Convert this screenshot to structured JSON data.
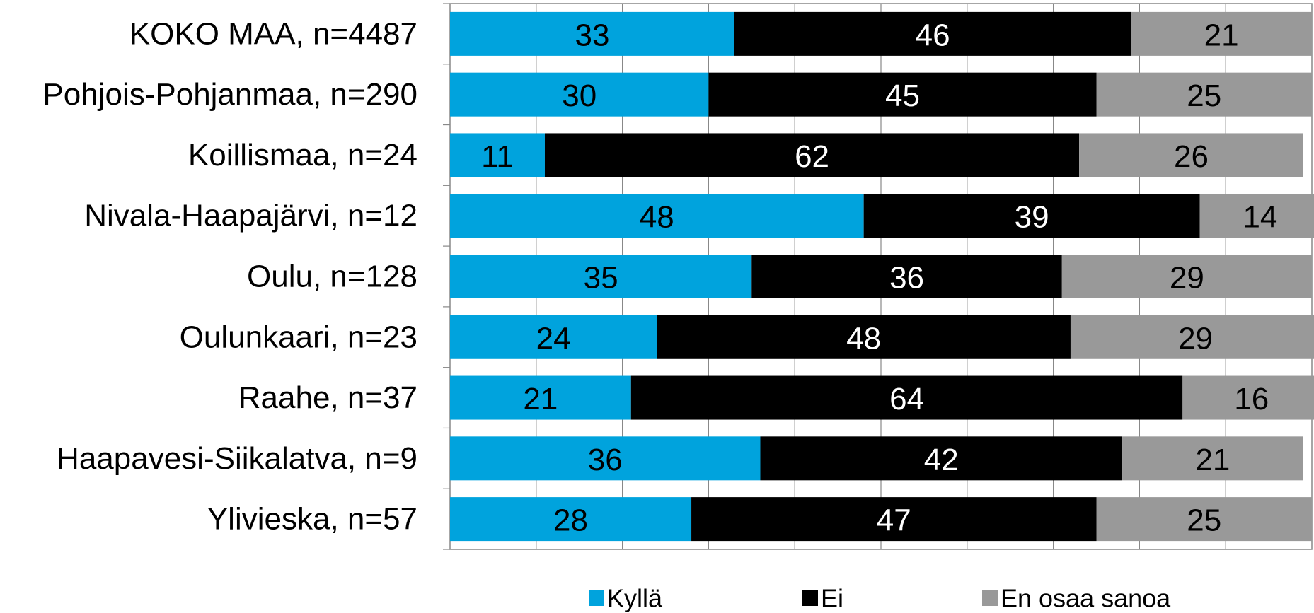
{
  "chart_data": {
    "type": "bar",
    "orientation": "horizontal",
    "stacked": "percent",
    "title": "",
    "xlabel": "",
    "ylabel": "",
    "xlim": [
      0,
      100
    ],
    "grid": true,
    "legend_position": "bottom",
    "categories": [
      "KOKO MAA, n=4487",
      "Pohjois-Pohjanmaa, n=290",
      "Koillismaa, n=24",
      "Nivala-Haapajärvi, n=12",
      "Oulu, n=128",
      "Oulunkaari, n=23",
      "Raahe, n=37",
      "Haapavesi-Siikalatva, n=9",
      "Ylivieska, n=57"
    ],
    "series": [
      {
        "name": "Kyllä",
        "color": "#00A3DD",
        "label_color": "#000000",
        "values": [
          33,
          30,
          11,
          48,
          35,
          24,
          21,
          36,
          28
        ]
      },
      {
        "name": "Ei",
        "color": "#000000",
        "label_color": "#FFFFFF",
        "values": [
          46,
          45,
          62,
          39,
          36,
          48,
          64,
          42,
          47
        ]
      },
      {
        "name": "En osaa sanoa",
        "color": "#999999",
        "label_color": "#000000",
        "values": [
          21,
          25,
          26,
          14,
          29,
          29,
          16,
          21,
          25
        ]
      }
    ]
  }
}
